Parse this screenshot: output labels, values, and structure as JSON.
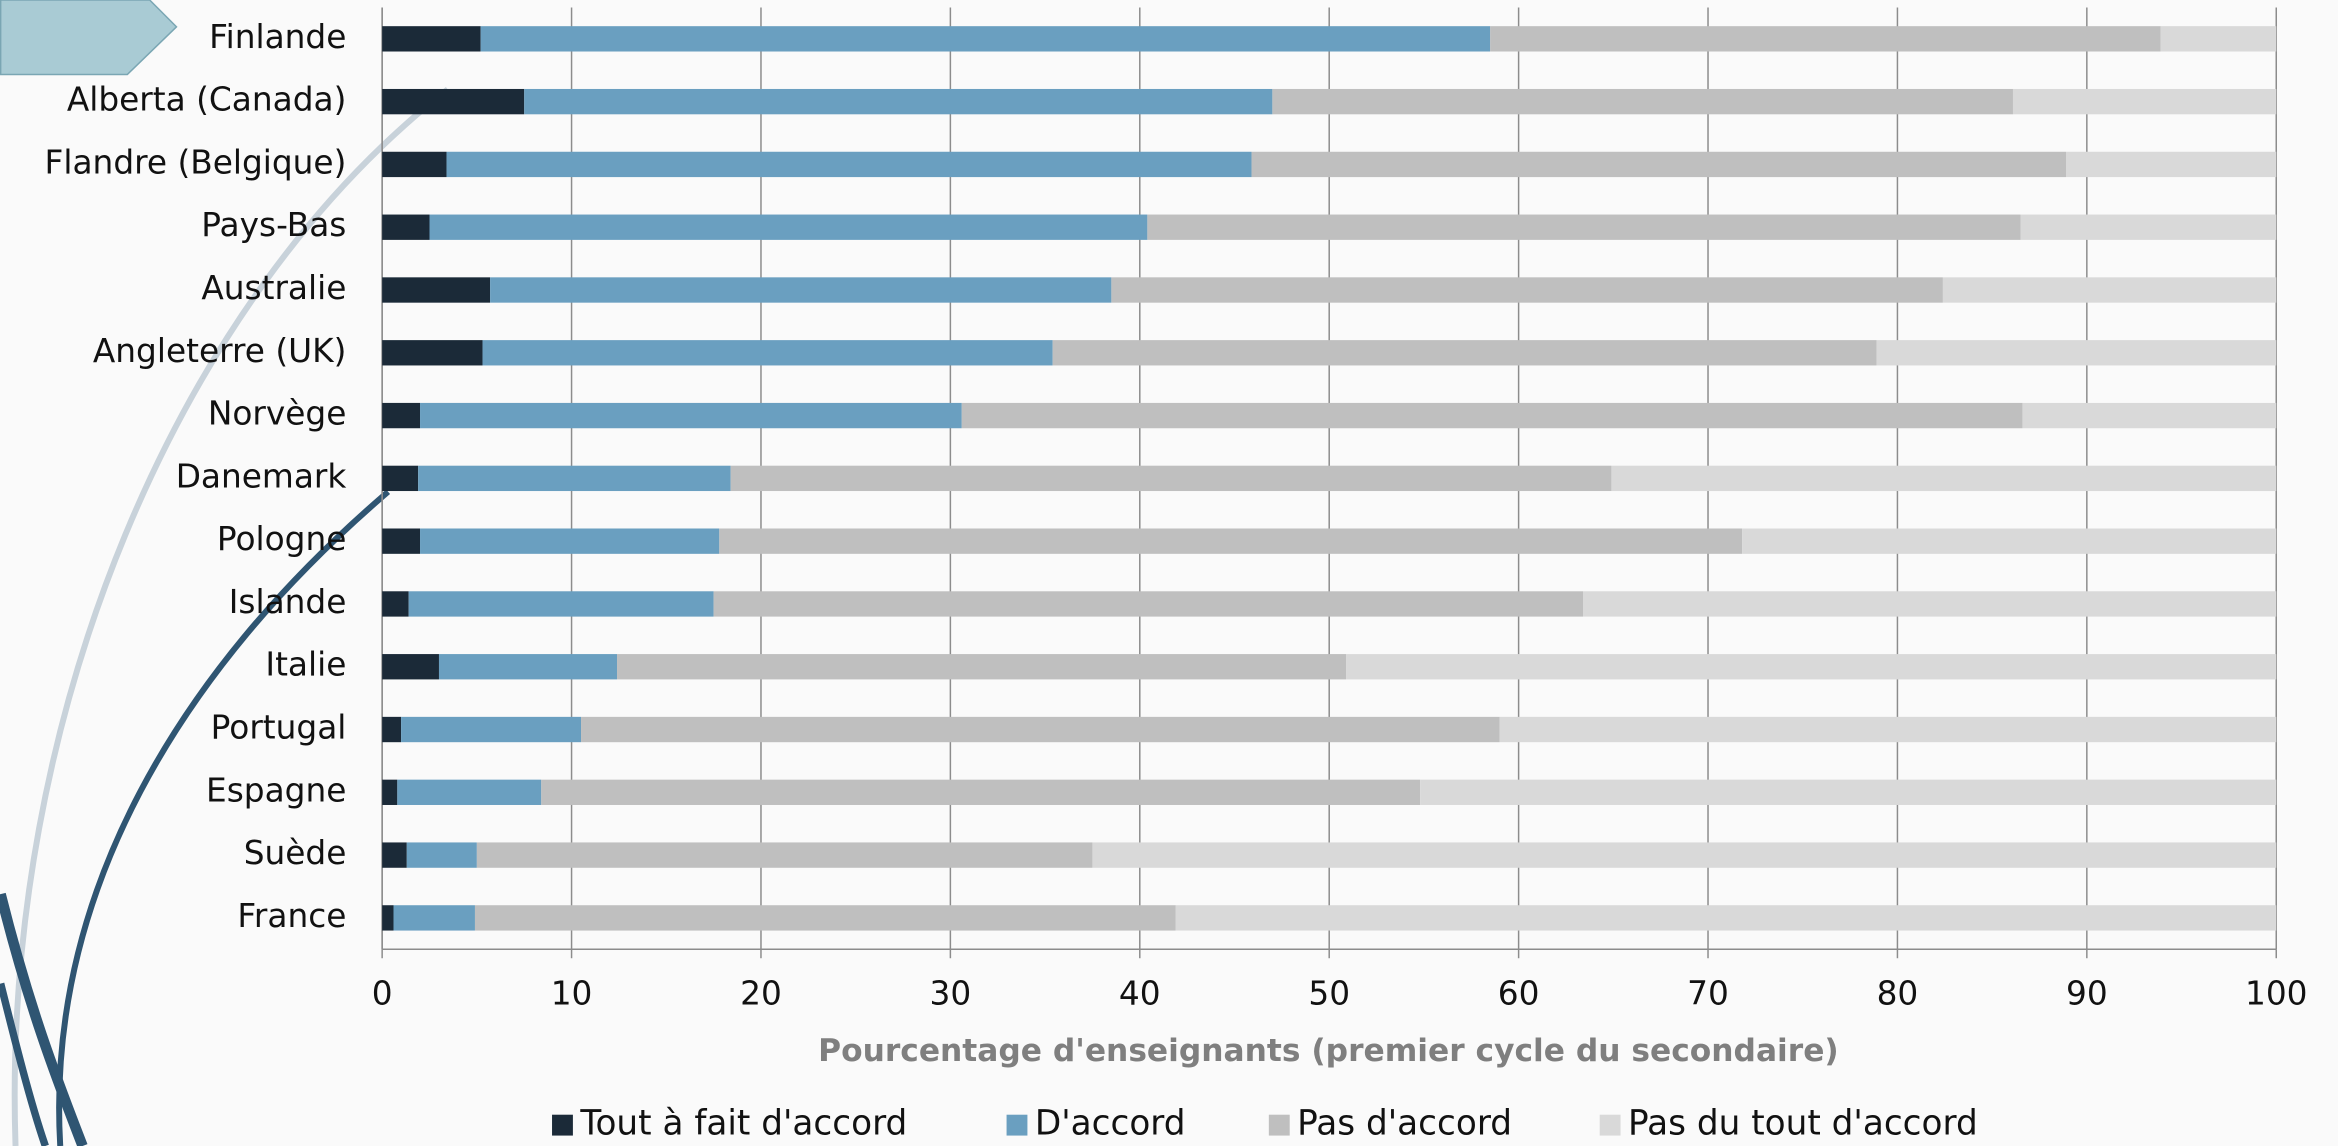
{
  "chart_data": {
    "type": "stacked-barh",
    "xlabel": "Pourcentage d'enseignants  (premier cycle du secondaire)",
    "categories": [
      "Finlande",
      "Alberta (Canada)",
      "Flandre (Belgique)",
      "Pays-Bas",
      "Australie",
      "Angleterre (UK)",
      "Norvège",
      "Danemark",
      "Pologne",
      "Islande",
      "Italie",
      "Portugal",
      "Espagne",
      "Suède",
      "France"
    ],
    "series": [
      {
        "name": "Tout à fait d'accord",
        "color": "#1b2a38",
        "values": [
          5.2,
          7.5,
          3.4,
          2.5,
          5.7,
          5.3,
          2.0,
          1.9,
          2.0,
          1.4,
          3.0,
          1.0,
          0.8,
          1.3,
          0.6
        ]
      },
      {
        "name": "D'accord",
        "color": "#6a9fc0",
        "values": [
          53.3,
          39.5,
          42.5,
          37.9,
          32.8,
          30.1,
          28.6,
          16.5,
          15.8,
          16.1,
          9.4,
          9.5,
          7.6,
          3.7,
          4.3
        ]
      },
      {
        "name": "Pas d'accord",
        "color": "#bfbfbf",
        "values": [
          35.4,
          39.1,
          43.0,
          46.1,
          43.9,
          43.5,
          56.0,
          46.5,
          54.0,
          45.9,
          38.5,
          48.5,
          46.4,
          32.5,
          37.0
        ]
      },
      {
        "name": "Pas du tout d'accord",
        "color": "#d9d9d9",
        "values": [
          6.1,
          13.9,
          11.1,
          13.5,
          17.6,
          21.1,
          13.4,
          35.1,
          28.2,
          36.6,
          49.1,
          41.0,
          45.2,
          62.5,
          58.1
        ]
      }
    ],
    "xlim": [
      0,
      100
    ],
    "xticks": [
      0,
      10,
      20,
      30,
      40,
      50,
      60,
      70,
      80,
      90,
      100
    ],
    "grid": true,
    "legend": "bottom"
  }
}
